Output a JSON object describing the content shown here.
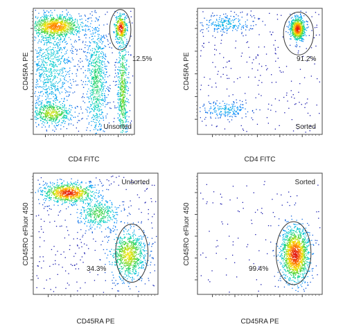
{
  "chart_data": [
    {
      "type": "scatter",
      "xlabel": "CD4 FITC",
      "ylabel": "CD45RA PE",
      "state": "Unsorted",
      "gate_label": "12.5%",
      "gate_percent": 12.5,
      "populations": [
        {
          "cx": 0.22,
          "cy": 0.86,
          "sx": 0.13,
          "sy": 0.045,
          "n": 900
        },
        {
          "cx": 0.17,
          "cy": 0.55,
          "sx": 0.11,
          "sy": 0.2,
          "n": 700
        },
        {
          "cx": 0.18,
          "cy": 0.17,
          "sx": 0.1,
          "sy": 0.045,
          "n": 450
        },
        {
          "cx": 0.62,
          "cy": 0.42,
          "sx": 0.05,
          "sy": 0.22,
          "n": 650
        },
        {
          "cx": 0.88,
          "cy": 0.35,
          "sx": 0.025,
          "sy": 0.25,
          "n": 550
        },
        {
          "cx": 0.86,
          "cy": 0.85,
          "sx": 0.03,
          "sy": 0.05,
          "n": 300
        }
      ],
      "noise": 350,
      "gate": {
        "cx": 0.86,
        "cy": 0.83,
        "rx": 0.105,
        "ry": 0.16
      }
    },
    {
      "type": "scatter",
      "xlabel": "CD4 FITC",
      "ylabel": "CD45RA PE",
      "state": "Sorted",
      "gate_label": "91.2%",
      "gate_percent": 91.2,
      "populations": [
        {
          "cx": 0.8,
          "cy": 0.84,
          "sx": 0.03,
          "sy": 0.045,
          "n": 700
        },
        {
          "cx": 0.23,
          "cy": 0.88,
          "sx": 0.1,
          "sy": 0.035,
          "n": 200
        },
        {
          "cx": 0.22,
          "cy": 0.2,
          "sx": 0.1,
          "sy": 0.035,
          "n": 170
        }
      ],
      "noise": 260,
      "gate": {
        "cx": 0.81,
        "cy": 0.8,
        "rx": 0.12,
        "ry": 0.17
      }
    },
    {
      "type": "scatter",
      "xlabel": "CD45RA PE",
      "ylabel": "CD45RO eFluor 450",
      "state": "Unsorted",
      "gate_label": "34.3%",
      "gate_percent": 34.3,
      "populations": [
        {
          "cx": 0.28,
          "cy": 0.84,
          "sx": 0.1,
          "sy": 0.04,
          "n": 800
        },
        {
          "cx": 0.52,
          "cy": 0.67,
          "sx": 0.08,
          "sy": 0.06,
          "n": 350
        },
        {
          "cx": 0.76,
          "cy": 0.33,
          "sx": 0.07,
          "sy": 0.1,
          "n": 800
        }
      ],
      "noise": 300,
      "gate": {
        "cx": 0.79,
        "cy": 0.34,
        "rx": 0.13,
        "ry": 0.24
      }
    },
    {
      "type": "scatter",
      "xlabel": "CD45RA PE",
      "ylabel": "CD45RO eFluor 450",
      "state": "Sorted",
      "gate_label": "99.4%",
      "gate_percent": 99.4,
      "populations": [
        {
          "cx": 0.78,
          "cy": 0.33,
          "sx": 0.055,
          "sy": 0.11,
          "n": 1400
        }
      ],
      "noise": 120,
      "gate": {
        "cx": 0.77,
        "cy": 0.34,
        "rx": 0.14,
        "ry": 0.26
      }
    }
  ]
}
